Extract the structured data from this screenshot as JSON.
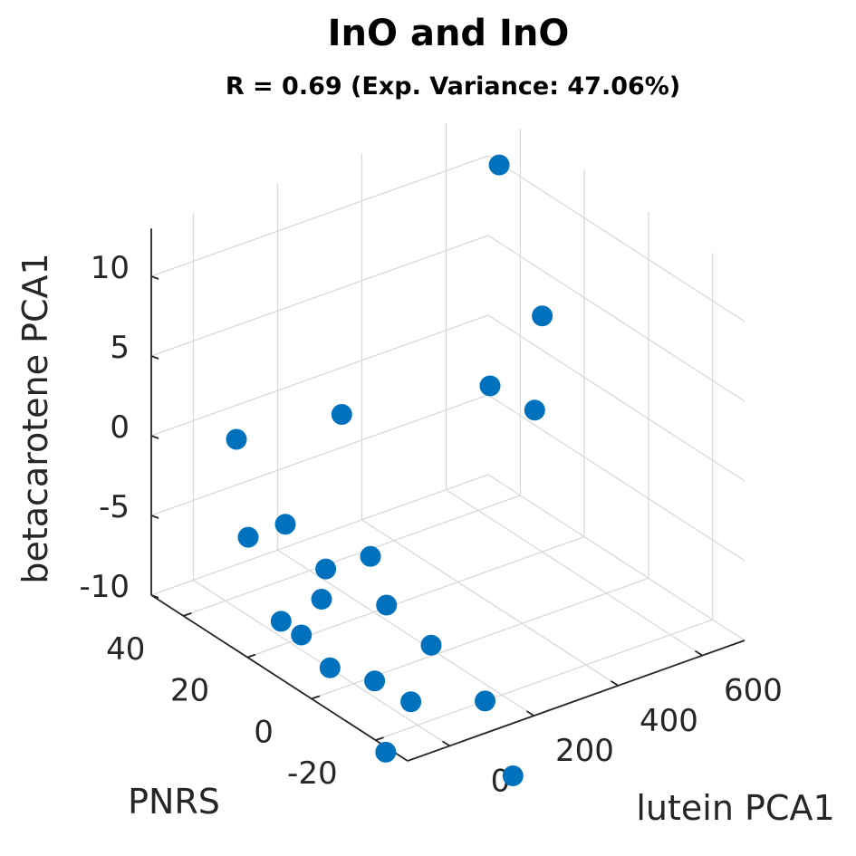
{
  "chart_data": {
    "type": "scatter",
    "projection": "3d",
    "title": "InO and InO",
    "subtitle": "R = 0.69 (Exp. Variance: 47.06%)",
    "xlabel": "lutein PCA1",
    "ylabel": "PNRS",
    "zlabel": "betacarotene PCA1",
    "xlim": [
      -100,
      700
    ],
    "ylim": [
      -30,
      50
    ],
    "zlim": [
      -10,
      13
    ],
    "xticks": [
      "0",
      "200",
      "400",
      "600"
    ],
    "yticks": [
      "-20",
      "0",
      "20",
      "40"
    ],
    "zticks": [
      "-10",
      "-5",
      "0",
      "5",
      "10"
    ],
    "grid": true,
    "marker_color": "#0072BD",
    "points": [
      {
        "x": 650,
        "y": 40,
        "z": 11.2
      },
      {
        "x": 600,
        "y": 20,
        "z": 4.8
      },
      {
        "x": 400,
        "y": 10,
        "z": 3.6
      },
      {
        "x": 430,
        "y": 0,
        "z": 3.1
      },
      {
        "x": 200,
        "y": 30,
        "z": 1.1
      },
      {
        "x": -50,
        "y": 30,
        "z": 1.9
      },
      {
        "x": -10,
        "y": 20,
        "z": -2.5
      },
      {
        "x": -60,
        "y": 25,
        "z": -3.5
      },
      {
        "x": 40,
        "y": 0,
        "z": -2.4
      },
      {
        "x": 10,
        "y": 10,
        "z": -4.2
      },
      {
        "x": 40,
        "y": -5,
        "z": -4.8
      },
      {
        "x": 70,
        "y": -15,
        "z": -6.3
      },
      {
        "x": 0,
        "y": 10,
        "z": -6.0
      },
      {
        "x": -20,
        "y": 20,
        "z": -8.5
      },
      {
        "x": -10,
        "y": 15,
        "z": -8.8
      },
      {
        "x": 60,
        "y": -10,
        "z": -10.4
      },
      {
        "x": 20,
        "y": 10,
        "z": -10.5
      },
      {
        "x": 50,
        "y": 0,
        "z": -10.3
      },
      {
        "x": 160,
        "y": -20,
        "z": -10.0
      },
      {
        "x": 0,
        "y": -10,
        "z": -13.0
      },
      {
        "x": 150,
        "y": -30,
        "z": -13.3
      }
    ]
  }
}
